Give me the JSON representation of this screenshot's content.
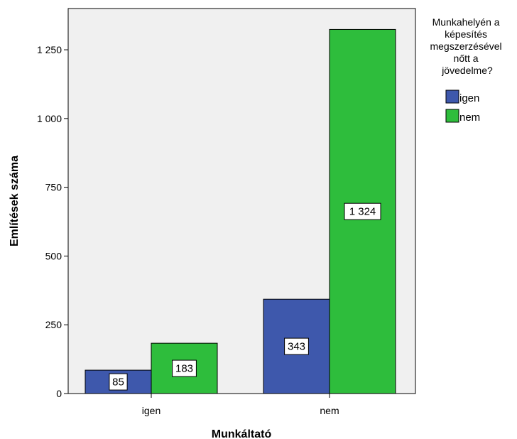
{
  "chart_data": {
    "type": "bar",
    "xlabel": "Munkáltató",
    "ylabel": "Említések száma",
    "categories": [
      "igen",
      "nem"
    ],
    "series": [
      {
        "name": "igen",
        "values": [
          85,
          343
        ],
        "labels": [
          "85",
          "343"
        ],
        "color": "#3e58ac"
      },
      {
        "name": "nem",
        "values": [
          183,
          1324
        ],
        "labels": [
          "183",
          "1 324"
        ],
        "color": "#2ebd3c"
      }
    ],
    "ylim": [
      0,
      1400
    ],
    "yticks": [
      0,
      250,
      500,
      750,
      1000,
      1250
    ],
    "ytick_labels": [
      "0",
      "250",
      "500",
      "750",
      "1 000",
      "1 250"
    ],
    "legend": {
      "title_lines": [
        "Munkahelyén a",
        "képesítés",
        "megszerzésével",
        "nőtt a",
        "jövedelme?"
      ],
      "placement": "right"
    },
    "plot_background": "#f0f0f0",
    "grid": false
  }
}
